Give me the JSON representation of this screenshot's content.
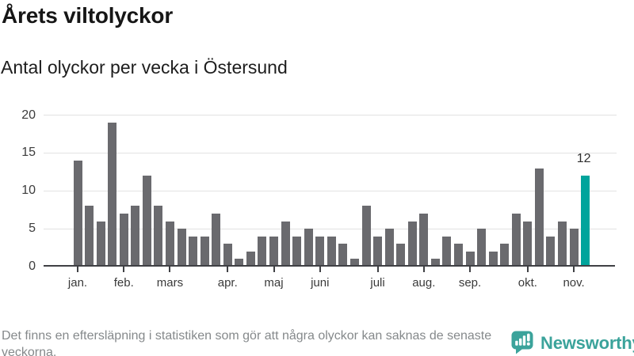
{
  "header": {
    "title": "Årets viltolyckor",
    "subtitle": "Antal olyckor per vecka i Östersund"
  },
  "chart_data": {
    "type": "bar",
    "title": "Årets viltolyckor",
    "subtitle": "Antal olyckor per vecka i Östersund",
    "x_unit": "vecka",
    "values": [
      14,
      8,
      6,
      19,
      7,
      8,
      12,
      8,
      6,
      5,
      4,
      4,
      7,
      3,
      1,
      2,
      4,
      4,
      6,
      4,
      5,
      4,
      4,
      3,
      1,
      8,
      4,
      5,
      3,
      6,
      7,
      1,
      4,
      3,
      2,
      5,
      2,
      3,
      7,
      6,
      13,
      4,
      6,
      5,
      12
    ],
    "month_ticks": [
      {
        "label": "jan.",
        "bar_index": 0
      },
      {
        "label": "feb.",
        "bar_index": 4
      },
      {
        "label": "mars",
        "bar_index": 8
      },
      {
        "label": "apr.",
        "bar_index": 13
      },
      {
        "label": "maj",
        "bar_index": 17
      },
      {
        "label": "juni",
        "bar_index": 21
      },
      {
        "label": "juli",
        "bar_index": 26
      },
      {
        "label": "aug.",
        "bar_index": 30
      },
      {
        "label": "sep.",
        "bar_index": 34
      },
      {
        "label": "okt.",
        "bar_index": 39
      },
      {
        "label": "nov.",
        "bar_index": 43
      }
    ],
    "yticks": [
      0,
      5,
      10,
      15,
      20
    ],
    "ylim": [
      0,
      20
    ],
    "grid": true,
    "highlight_index": 44,
    "highlight_label": "12"
  },
  "footer": {
    "note": "Det finns en eftersläpning i statistiken som gör att några olyckor kan saknas de senaste veckorna.",
    "brand": "Newsworthy"
  },
  "colors": {
    "bar": "#6a6a6e",
    "highlight": "#00a49c",
    "grid": "#e2e2e2",
    "axis": "#3f4044",
    "brand_teal": "#3ba39b"
  }
}
